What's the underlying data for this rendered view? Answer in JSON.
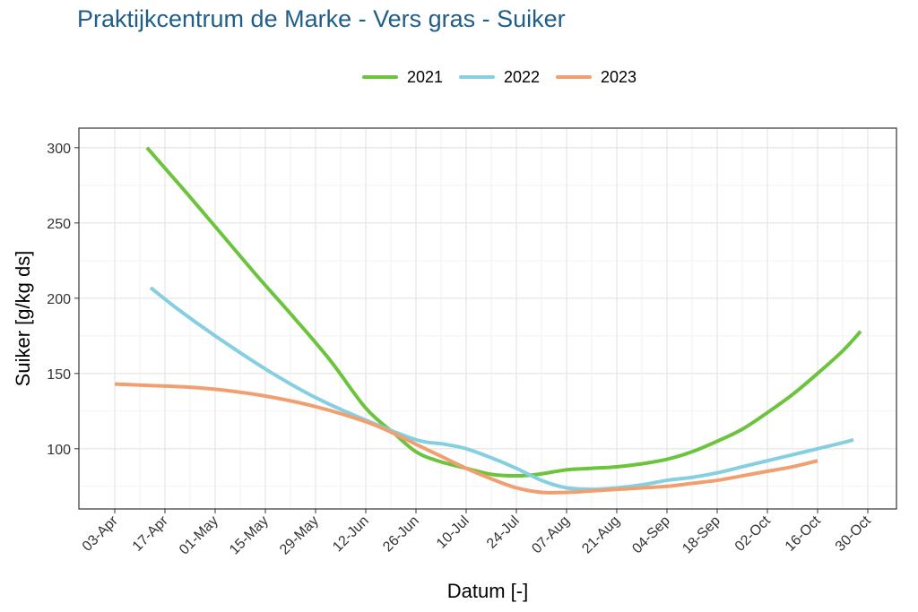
{
  "chart_data": {
    "type": "line",
    "title": "Praktijkcentrum de Marke - Vers gras - Suiker",
    "xlabel": "Datum [-]",
    "ylabel": "Suiker [g/kg ds]",
    "x_tick_labels": [
      "03-Apr",
      "17-Apr",
      "01-May",
      "15-May",
      "29-May",
      "12-Jun",
      "26-Jun",
      "10-Jul",
      "24-Jul",
      "07-Aug",
      "21-Aug",
      "04-Sep",
      "18-Sep",
      "02-Oct",
      "16-Oct",
      "30-Oct"
    ],
    "x_tick_days": [
      0,
      14,
      28,
      42,
      56,
      70,
      84,
      98,
      112,
      126,
      140,
      154,
      168,
      182,
      196,
      210
    ],
    "xlim_days": [
      -10,
      218
    ],
    "y_ticks": [
      100,
      150,
      200,
      250,
      300
    ],
    "ylim": [
      60,
      313
    ],
    "grid": true,
    "legend_position": "top",
    "series": [
      {
        "name": "2021",
        "color": "#6cc43e",
        "x_days": [
          9,
          20,
          30,
          40,
          50,
          60,
          70,
          78,
          84,
          90,
          98,
          105,
          112,
          118,
          126,
          133,
          140,
          147,
          154,
          161,
          168,
          175,
          182,
          189,
          196,
          203,
          208
        ],
        "values": [
          300,
          270,
          242,
          214,
          187,
          159,
          127,
          110,
          98,
          92,
          87,
          83,
          82,
          83,
          86,
          87,
          88,
          90,
          93,
          98,
          105,
          113,
          124,
          136,
          150,
          165,
          178
        ]
      },
      {
        "name": "2022",
        "color": "#85cfe0",
        "x_days": [
          10,
          18,
          28,
          42,
          56,
          70,
          84,
          92,
          98,
          105,
          112,
          119,
          126,
          133,
          140,
          147,
          154,
          161,
          168,
          175,
          182,
          189,
          196,
          203,
          206
        ],
        "values": [
          207,
          192,
          175,
          153,
          134,
          119,
          106,
          103,
          100,
          94,
          87,
          79,
          74,
          73,
          74,
          76,
          79,
          81,
          84,
          88,
          92,
          96,
          100,
          104,
          106
        ],
        "comment_removed": true
      },
      {
        "name": "2023",
        "color": "#f0a070",
        "x_days": [
          0,
          10,
          20,
          30,
          42,
          56,
          70,
          78,
          84,
          91,
          98,
          105,
          112,
          119,
          126,
          133,
          140,
          147,
          154,
          161,
          168,
          175,
          182,
          189,
          196
        ],
        "values": [
          143,
          142,
          141,
          139,
          135,
          128,
          118,
          110,
          103,
          95,
          87,
          80,
          74,
          71,
          71,
          72,
          73,
          74,
          75,
          77,
          79,
          82,
          85,
          88,
          92
        ]
      }
    ]
  }
}
